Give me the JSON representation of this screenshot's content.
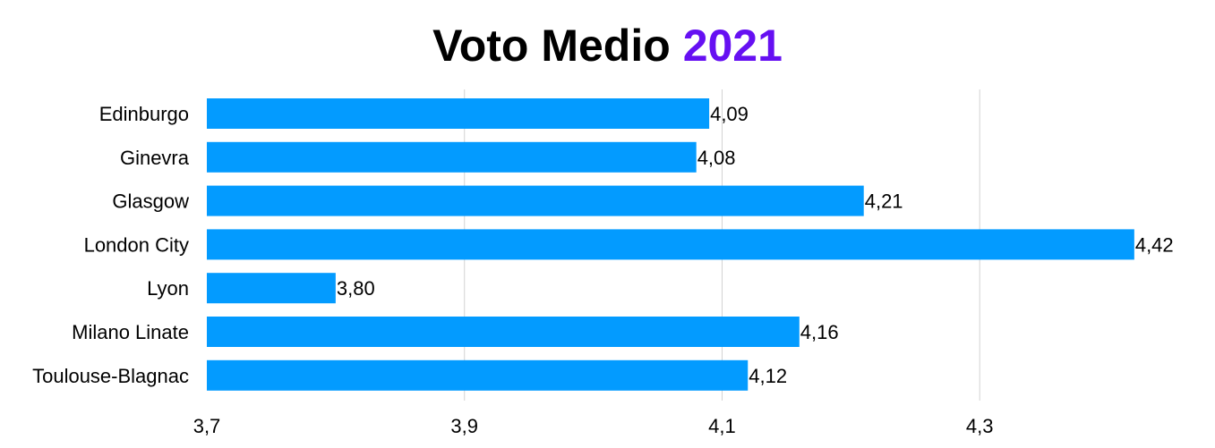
{
  "chart_data": {
    "type": "bar",
    "orientation": "horizontal",
    "title_main": "Voto Medio",
    "title_year": "2021",
    "categories": [
      "Edinburgo",
      "Ginevra",
      "Glasgow",
      "London City",
      "Lyon",
      "Milano Linate",
      "Toulouse-Blagnac"
    ],
    "values": [
      4.09,
      4.08,
      4.21,
      4.42,
      3.8,
      4.16,
      4.12
    ],
    "value_labels": [
      "4,09",
      "4,08",
      "4,21",
      "4,42",
      "3,80",
      "4,16",
      "4,12"
    ],
    "xlim": [
      3.7,
      4.45
    ],
    "x_ticks": [
      3.7,
      3.9,
      4.1,
      4.3
    ],
    "x_tick_labels": [
      "3,7",
      "3,9",
      "4,1",
      "4,3"
    ],
    "grid": "vertical",
    "legend": "none"
  },
  "colors": {
    "bar": "#039bff",
    "title_accent": "#6610f2",
    "grid": "#d3d3d3"
  }
}
